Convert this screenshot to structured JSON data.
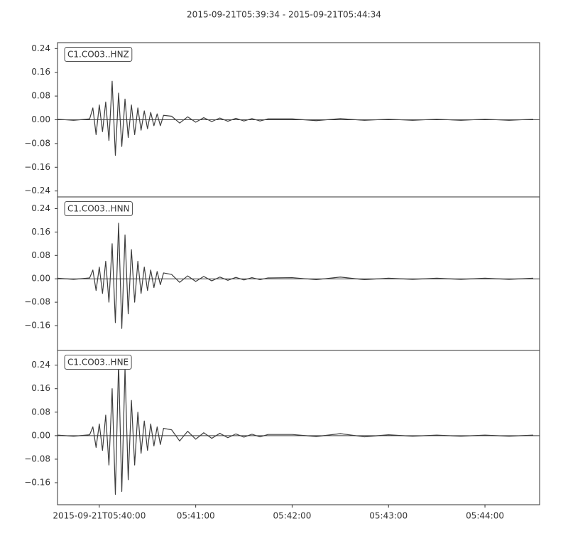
{
  "title": "2015-09-21T05:39:34  -  2015-09-21T05:44:34",
  "chart_data": [
    {
      "type": "line",
      "color": "#3d3d3d",
      "x": [
        "2015-09-21T05:39:34",
        "2015-09-21T05:39:44",
        "2015-09-21T05:39:54",
        "2015-09-21T05:39:56",
        "2015-09-21T05:39:58",
        "2015-09-21T05:40:00",
        "2015-09-21T05:40:02",
        "2015-09-21T05:40:04",
        "2015-09-21T05:40:06",
        "2015-09-21T05:40:08",
        "2015-09-21T05:40:10",
        "2015-09-21T05:40:12",
        "2015-09-21T05:40:14",
        "2015-09-21T05:40:16",
        "2015-09-21T05:40:18",
        "2015-09-21T05:40:20",
        "2015-09-21T05:40:22",
        "2015-09-21T05:40:24",
        "2015-09-21T05:40:26",
        "2015-09-21T05:40:28",
        "2015-09-21T05:40:30",
        "2015-09-21T05:40:32",
        "2015-09-21T05:40:34",
        "2015-09-21T05:40:36",
        "2015-09-21T05:40:38",
        "2015-09-21T05:40:40",
        "2015-09-21T05:40:45",
        "2015-09-21T05:40:50",
        "2015-09-21T05:40:55",
        "2015-09-21T05:41:00",
        "2015-09-21T05:41:05",
        "2015-09-21T05:41:10",
        "2015-09-21T05:41:15",
        "2015-09-21T05:41:20",
        "2015-09-21T05:41:25",
        "2015-09-21T05:41:30",
        "2015-09-21T05:41:35",
        "2015-09-21T05:41:40",
        "2015-09-21T05:41:45",
        "2015-09-21T05:42:00",
        "2015-09-21T05:42:15",
        "2015-09-21T05:42:30",
        "2015-09-21T05:42:45",
        "2015-09-21T05:43:00",
        "2015-09-21T05:43:15",
        "2015-09-21T05:43:30",
        "2015-09-21T05:43:45",
        "2015-09-21T05:44:00",
        "2015-09-21T05:44:15",
        "2015-09-21T05:44:30"
      ],
      "series": [
        {
          "name": "C1.CO03..HNZ",
          "values": [
            0.002,
            -0.002,
            0.003,
            0.04,
            -0.05,
            0.05,
            -0.04,
            0.06,
            -0.07,
            0.13,
            -0.12,
            0.09,
            -0.09,
            0.07,
            -0.06,
            0.05,
            -0.05,
            0.04,
            -0.035,
            0.03,
            -0.03,
            0.025,
            -0.02,
            0.02,
            -0.02,
            0.015,
            0.012,
            -0.011,
            0.01,
            -0.008,
            0.007,
            -0.006,
            0.006,
            -0.005,
            0.005,
            -0.004,
            0.004,
            -0.004,
            0.003,
            0.003,
            -0.003,
            0.004,
            -0.002,
            0.002,
            -0.002,
            0.002,
            -0.002,
            0.002,
            -0.002,
            0.002
          ]
        }
      ],
      "xlim": [
        "2015-09-21T05:39:34",
        "2015-09-21T05:44:34"
      ],
      "ylim": [
        -0.26,
        0.26
      ],
      "yticks": [
        {
          "value": -0.24,
          "label": "−0.24"
        },
        {
          "value": -0.16,
          "label": "−0.16"
        },
        {
          "value": -0.08,
          "label": "−0.08"
        },
        {
          "value": 0,
          "label": "0.00"
        },
        {
          "value": 0.08,
          "label": "0.08"
        },
        {
          "value": 0.16,
          "label": "0.16"
        },
        {
          "value": 0.24,
          "label": "0.24"
        }
      ]
    },
    {
      "type": "line",
      "color": "#3d3d3d",
      "x": [
        "2015-09-21T05:39:34",
        "2015-09-21T05:39:44",
        "2015-09-21T05:39:54",
        "2015-09-21T05:39:56",
        "2015-09-21T05:39:58",
        "2015-09-21T05:40:00",
        "2015-09-21T05:40:02",
        "2015-09-21T05:40:04",
        "2015-09-21T05:40:06",
        "2015-09-21T05:40:08",
        "2015-09-21T05:40:10",
        "2015-09-21T05:40:12",
        "2015-09-21T05:40:14",
        "2015-09-21T05:40:16",
        "2015-09-21T05:40:18",
        "2015-09-21T05:40:20",
        "2015-09-21T05:40:22",
        "2015-09-21T05:40:24",
        "2015-09-21T05:40:26",
        "2015-09-21T05:40:28",
        "2015-09-21T05:40:30",
        "2015-09-21T05:40:32",
        "2015-09-21T05:40:34",
        "2015-09-21T05:40:36",
        "2015-09-21T05:40:38",
        "2015-09-21T05:40:40",
        "2015-09-21T05:40:45",
        "2015-09-21T05:40:50",
        "2015-09-21T05:40:55",
        "2015-09-21T05:41:00",
        "2015-09-21T05:41:05",
        "2015-09-21T05:41:10",
        "2015-09-21T05:41:15",
        "2015-09-21T05:41:20",
        "2015-09-21T05:41:25",
        "2015-09-21T05:41:30",
        "2015-09-21T05:41:35",
        "2015-09-21T05:41:40",
        "2015-09-21T05:41:45",
        "2015-09-21T05:42:00",
        "2015-09-21T05:42:15",
        "2015-09-21T05:42:30",
        "2015-09-21T05:42:45",
        "2015-09-21T05:43:00",
        "2015-09-21T05:43:15",
        "2015-09-21T05:43:30",
        "2015-09-21T05:43:45",
        "2015-09-21T05:44:00",
        "2015-09-21T05:44:15",
        "2015-09-21T05:44:30"
      ],
      "series": [
        {
          "name": "C1.CO03..HNN",
          "values": [
            0.002,
            -0.002,
            0.003,
            0.03,
            -0.04,
            0.04,
            -0.05,
            0.06,
            -0.08,
            0.12,
            -0.15,
            0.19,
            -0.17,
            0.15,
            -0.12,
            0.1,
            -0.08,
            0.06,
            -0.05,
            0.04,
            -0.04,
            0.03,
            -0.03,
            0.025,
            -0.02,
            0.02,
            0.015,
            -0.012,
            0.01,
            -0.009,
            0.008,
            -0.007,
            0.006,
            -0.005,
            0.005,
            -0.004,
            0.004,
            -0.003,
            0.003,
            0.004,
            -0.003,
            0.006,
            -0.003,
            0.002,
            -0.002,
            0.002,
            -0.002,
            0.002,
            -0.002,
            0.002
          ]
        }
      ],
      "xlim": [
        "2015-09-21T05:39:34",
        "2015-09-21T05:44:34"
      ],
      "ylim": [
        -0.245,
        0.28
      ],
      "yticks": [
        {
          "value": -0.16,
          "label": "−0.16"
        },
        {
          "value": -0.08,
          "label": "−0.08"
        },
        {
          "value": 0,
          "label": "0.00"
        },
        {
          "value": 0.08,
          "label": "0.08"
        },
        {
          "value": 0.16,
          "label": "0.16"
        },
        {
          "value": 0.24,
          "label": "0.24"
        }
      ]
    },
    {
      "type": "line",
      "color": "#3d3d3d",
      "x": [
        "2015-09-21T05:39:34",
        "2015-09-21T05:39:44",
        "2015-09-21T05:39:54",
        "2015-09-21T05:39:56",
        "2015-09-21T05:39:58",
        "2015-09-21T05:40:00",
        "2015-09-21T05:40:02",
        "2015-09-21T05:40:04",
        "2015-09-21T05:40:06",
        "2015-09-21T05:40:08",
        "2015-09-21T05:40:10",
        "2015-09-21T05:40:12",
        "2015-09-21T05:40:14",
        "2015-09-21T05:40:16",
        "2015-09-21T05:40:18",
        "2015-09-21T05:40:20",
        "2015-09-21T05:40:22",
        "2015-09-21T05:40:24",
        "2015-09-21T05:40:26",
        "2015-09-21T05:40:28",
        "2015-09-21T05:40:30",
        "2015-09-21T05:40:32",
        "2015-09-21T05:40:34",
        "2015-09-21T05:40:36",
        "2015-09-21T05:40:38",
        "2015-09-21T05:40:40",
        "2015-09-21T05:40:45",
        "2015-09-21T05:40:50",
        "2015-09-21T05:40:55",
        "2015-09-21T05:41:00",
        "2015-09-21T05:41:05",
        "2015-09-21T05:41:10",
        "2015-09-21T05:41:15",
        "2015-09-21T05:41:20",
        "2015-09-21T05:41:25",
        "2015-09-21T05:41:30",
        "2015-09-21T05:41:35",
        "2015-09-21T05:41:40",
        "2015-09-21T05:41:45",
        "2015-09-21T05:42:00",
        "2015-09-21T05:42:15",
        "2015-09-21T05:42:30",
        "2015-09-21T05:42:45",
        "2015-09-21T05:43:00",
        "2015-09-21T05:43:15",
        "2015-09-21T05:43:30",
        "2015-09-21T05:43:45",
        "2015-09-21T05:44:00",
        "2015-09-21T05:44:15",
        "2015-09-21T05:44:30"
      ],
      "series": [
        {
          "name": "C1.CO03..HNE",
          "values": [
            0.002,
            -0.002,
            0.003,
            0.03,
            -0.04,
            0.04,
            -0.05,
            0.07,
            -0.1,
            0.16,
            -0.2,
            0.25,
            -0.19,
            0.23,
            -0.15,
            0.12,
            -0.1,
            0.08,
            -0.06,
            0.05,
            -0.05,
            0.04,
            -0.035,
            0.03,
            -0.03,
            0.025,
            0.02,
            -0.018,
            0.015,
            -0.012,
            0.01,
            -0.009,
            0.008,
            -0.007,
            0.006,
            -0.005,
            0.005,
            -0.004,
            0.004,
            0.004,
            -0.003,
            0.007,
            -0.004,
            0.003,
            -0.002,
            0.002,
            -0.002,
            0.002,
            -0.002,
            0.002
          ]
        }
      ],
      "xlim": [
        "2015-09-21T05:39:34",
        "2015-09-21T05:44:34"
      ],
      "ylim": [
        -0.235,
        0.29
      ],
      "yticks": [
        {
          "value": -0.16,
          "label": "−0.16"
        },
        {
          "value": -0.08,
          "label": "−0.08"
        },
        {
          "value": 0,
          "label": "0.00"
        },
        {
          "value": 0.08,
          "label": "0.08"
        },
        {
          "value": 0.16,
          "label": "0.16"
        },
        {
          "value": 0.24,
          "label": "0.24"
        }
      ],
      "xticks": [
        "2015-09-21T05:40:00",
        {
          "value": "2015-09-21T05:41:00",
          "label": "05:41:00"
        },
        {
          "value": "2015-09-21T05:42:00",
          "label": "05:42:00"
        },
        {
          "value": "2015-09-21T05:43:00",
          "label": "05:43:00"
        },
        {
          "value": "2015-09-21T05:44:00",
          "label": "05:44:00"
        }
      ]
    }
  ]
}
